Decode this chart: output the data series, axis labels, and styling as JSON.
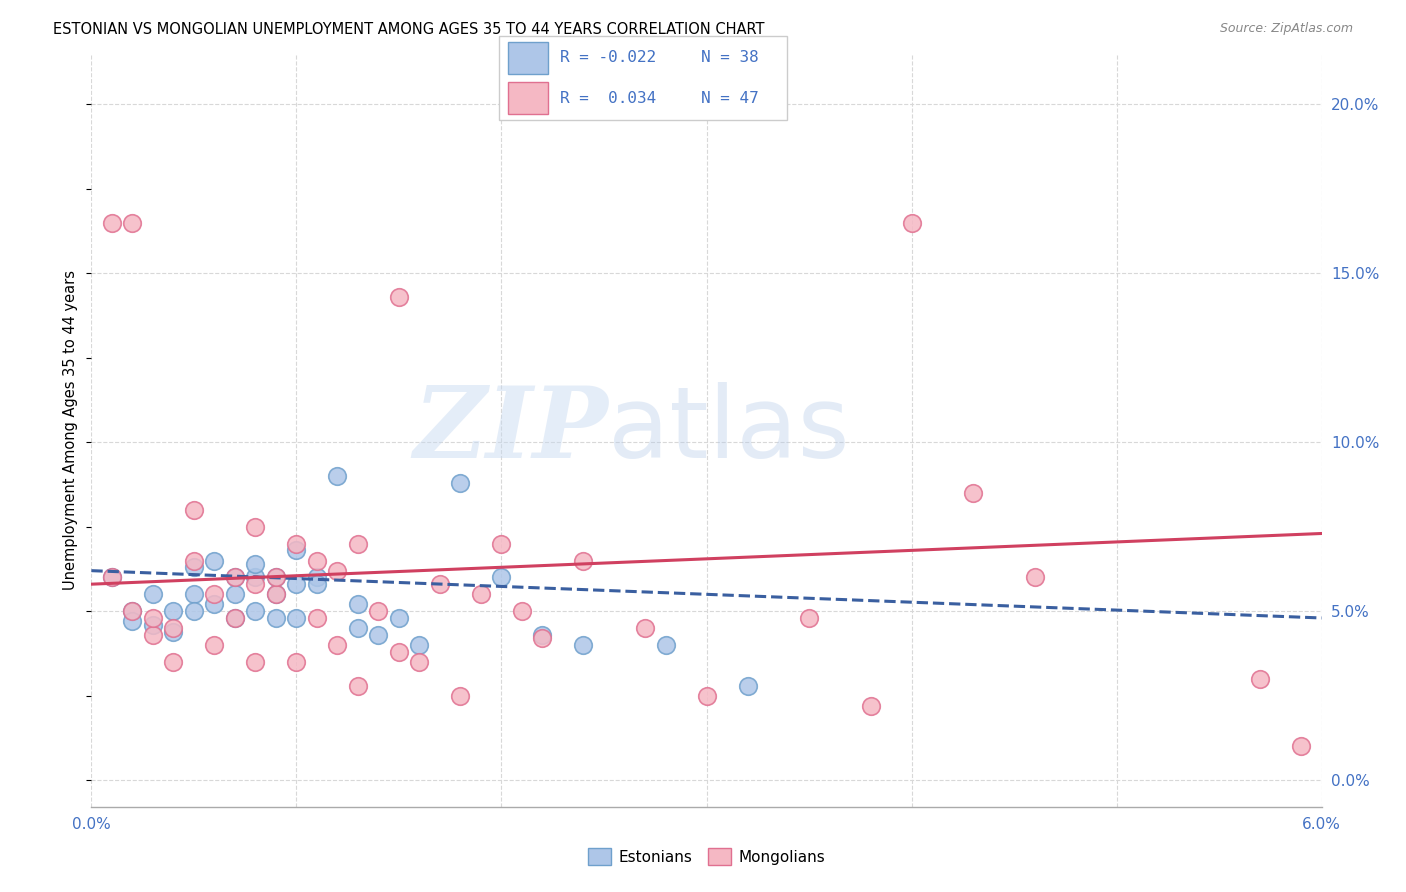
{
  "title": "ESTONIAN VS MONGOLIAN UNEMPLOYMENT AMONG AGES 35 TO 44 YEARS CORRELATION CHART",
  "source": "Source: ZipAtlas.com",
  "ylabel": "Unemployment Among Ages 35 to 44 years",
  "xmin": 0.0,
  "xmax": 0.06,
  "ymin": -0.008,
  "ymax": 0.215,
  "ytick_right_labels": [
    "0.0%",
    "5.0%",
    "10.0%",
    "15.0%",
    "20.0%"
  ],
  "ytick_right_vals": [
    0.0,
    0.05,
    0.1,
    0.15,
    0.2
  ],
  "xtick_labels": [
    "0.0%",
    "",
    "",
    "",
    "",
    "",
    "6.0%"
  ],
  "xtick_vals": [
    0.0,
    0.01,
    0.02,
    0.03,
    0.04,
    0.05,
    0.06
  ],
  "blue_color": "#aec6e8",
  "pink_color": "#f5b8c4",
  "blue_edge": "#6fa0cc",
  "pink_edge": "#e07090",
  "trend_blue_color": "#3a5fa0",
  "trend_pink_color": "#d04060",
  "legend_text_color": "#4472c4",
  "label_estonians": "Estonians",
  "label_mongolians": "Mongolians",
  "watermark_zip": "ZIP",
  "watermark_atlas": "atlas",
  "blue_R": "-0.022",
  "blue_N": "38",
  "pink_R": "0.034",
  "pink_N": "47",
  "blue_x": [
    0.001,
    0.002,
    0.002,
    0.003,
    0.003,
    0.004,
    0.004,
    0.005,
    0.005,
    0.005,
    0.006,
    0.006,
    0.007,
    0.007,
    0.007,
    0.008,
    0.008,
    0.008,
    0.009,
    0.009,
    0.009,
    0.01,
    0.01,
    0.01,
    0.011,
    0.011,
    0.012,
    0.013,
    0.013,
    0.014,
    0.015,
    0.016,
    0.018,
    0.02,
    0.022,
    0.024,
    0.028,
    0.032
  ],
  "blue_y": [
    0.06,
    0.05,
    0.047,
    0.055,
    0.046,
    0.05,
    0.044,
    0.063,
    0.055,
    0.05,
    0.052,
    0.065,
    0.06,
    0.055,
    0.048,
    0.06,
    0.05,
    0.064,
    0.06,
    0.055,
    0.048,
    0.068,
    0.058,
    0.048,
    0.06,
    0.058,
    0.09,
    0.052,
    0.045,
    0.043,
    0.048,
    0.04,
    0.088,
    0.06,
    0.043,
    0.04,
    0.04,
    0.028
  ],
  "pink_x": [
    0.001,
    0.001,
    0.002,
    0.002,
    0.003,
    0.003,
    0.004,
    0.004,
    0.005,
    0.005,
    0.006,
    0.006,
    0.007,
    0.007,
    0.008,
    0.008,
    0.008,
    0.009,
    0.009,
    0.01,
    0.01,
    0.011,
    0.011,
    0.012,
    0.012,
    0.013,
    0.013,
    0.014,
    0.015,
    0.015,
    0.016,
    0.017,
    0.018,
    0.019,
    0.02,
    0.021,
    0.022,
    0.024,
    0.027,
    0.03,
    0.035,
    0.038,
    0.04,
    0.043,
    0.046,
    0.057,
    0.059
  ],
  "pink_y": [
    0.06,
    0.165,
    0.165,
    0.05,
    0.043,
    0.048,
    0.045,
    0.035,
    0.065,
    0.08,
    0.055,
    0.04,
    0.06,
    0.048,
    0.075,
    0.058,
    0.035,
    0.055,
    0.06,
    0.07,
    0.035,
    0.065,
    0.048,
    0.062,
    0.04,
    0.07,
    0.028,
    0.05,
    0.143,
    0.038,
    0.035,
    0.058,
    0.025,
    0.055,
    0.07,
    0.05,
    0.042,
    0.065,
    0.045,
    0.025,
    0.048,
    0.022,
    0.165,
    0.085,
    0.06,
    0.03,
    0.01
  ],
  "blue_trend_x": [
    0.0,
    0.06
  ],
  "blue_trend_y": [
    0.062,
    0.048
  ],
  "pink_trend_x": [
    0.0,
    0.06
  ],
  "pink_trend_y": [
    0.058,
    0.073
  ],
  "grid_color": "#d8d8d8",
  "grid_minor_color": "#e8e8e8"
}
